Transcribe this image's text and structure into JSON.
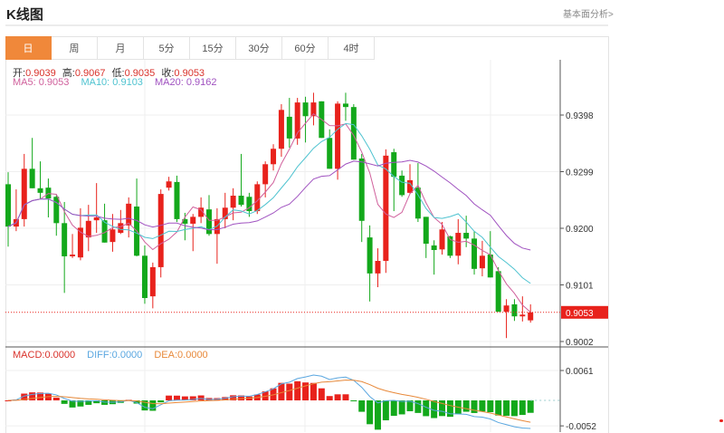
{
  "header": {
    "title": "K线图",
    "fundamental_link": "基本面分析>"
  },
  "tabs": [
    {
      "label": "日",
      "active": true
    },
    {
      "label": "周"
    },
    {
      "label": "月"
    },
    {
      "label": "5分"
    },
    {
      "label": "15分"
    },
    {
      "label": "30分"
    },
    {
      "label": "60分"
    },
    {
      "label": "4时"
    }
  ],
  "ohlc_info": {
    "open_label": "开:",
    "open": "0.9039",
    "high_label": "高:",
    "high": "0.9067",
    "low_label": "低:",
    "low": "0.9035",
    "close_label": "收:",
    "close": "0.9053"
  },
  "ma_info": {
    "ma5": "MA5: 0.9053",
    "ma10": "MA10: 0.9103",
    "ma20": "MA20: 0.9162"
  },
  "macd_info": {
    "macd": "MACD:0.0000",
    "diff": "DIFF:0.0000",
    "dea": "DEA:0.0000"
  },
  "colors": {
    "up": "#e8221c",
    "down": "#13a81b",
    "ma5": "#d0609c",
    "ma10": "#4fc3d0",
    "ma20": "#a052c0",
    "diff": "#5aa7e0",
    "dea": "#e8893a",
    "accent": "#f0883a"
  },
  "chart_data": {
    "type": "candlestick",
    "price_ticks": [
      "0.9398",
      "0.9299",
      "0.9200",
      "0.9101",
      "0.9002"
    ],
    "price_tick_values": [
      0.9398,
      0.9299,
      0.92,
      0.9101,
      0.9002
    ],
    "macd_ticks": [
      "0.0061",
      "-0.0052"
    ],
    "macd_tick_values": [
      0.0061,
      -0.0052
    ],
    "last_price": "0.9053",
    "last_price_value": 0.9053,
    "ohlc": [
      [
        0.9277,
        0.9298,
        0.9168,
        0.9203
      ],
      [
        0.9203,
        0.9268,
        0.9195,
        0.9216
      ],
      [
        0.9216,
        0.933,
        0.9203,
        0.9304
      ],
      [
        0.9304,
        0.9358,
        0.927,
        0.927
      ],
      [
        0.927,
        0.9317,
        0.9251,
        0.9262
      ],
      [
        0.9271,
        0.9287,
        0.9219,
        0.9252
      ],
      [
        0.9255,
        0.9258,
        0.9187,
        0.9209
      ],
      [
        0.9209,
        0.9246,
        0.9087,
        0.9151
      ],
      [
        0.9151,
        0.919,
        0.9148,
        0.9154
      ],
      [
        0.9149,
        0.9235,
        0.9144,
        0.9201
      ],
      [
        0.9184,
        0.9241,
        0.916,
        0.9213
      ],
      [
        0.9214,
        0.9279,
        0.9192,
        0.9219
      ],
      [
        0.9214,
        0.9243,
        0.9175,
        0.9175
      ],
      [
        0.9176,
        0.9225,
        0.9159,
        0.9198
      ],
      [
        0.9192,
        0.9232,
        0.919,
        0.9209
      ],
      [
        0.9205,
        0.9254,
        0.9184,
        0.9243
      ],
      [
        0.9238,
        0.9287,
        0.9151,
        0.9152
      ],
      [
        0.9152,
        0.917,
        0.9068,
        0.9078
      ],
      [
        0.9081,
        0.914,
        0.906,
        0.9132
      ],
      [
        0.9132,
        0.9268,
        0.9114,
        0.926
      ],
      [
        0.9271,
        0.929,
        0.9266,
        0.9282
      ],
      [
        0.9281,
        0.9292,
        0.9211,
        0.9216
      ],
      [
        0.9216,
        0.9227,
        0.9179,
        0.9208
      ],
      [
        0.9208,
        0.9225,
        0.916,
        0.922
      ],
      [
        0.922,
        0.9254,
        0.9209,
        0.9236
      ],
      [
        0.9233,
        0.9258,
        0.9187,
        0.919
      ],
      [
        0.919,
        0.9235,
        0.9138,
        0.9216
      ],
      [
        0.9216,
        0.9262,
        0.92,
        0.9236
      ],
      [
        0.9236,
        0.927,
        0.9214,
        0.9257
      ],
      [
        0.9257,
        0.933,
        0.9238,
        0.9241
      ],
      [
        0.9255,
        0.9262,
        0.922,
        0.923
      ],
      [
        0.923,
        0.9282,
        0.9225,
        0.9277
      ],
      [
        0.9277,
        0.9317,
        0.9254,
        0.9312
      ],
      [
        0.9312,
        0.9347,
        0.9301,
        0.9339
      ],
      [
        0.9339,
        0.9417,
        0.9325,
        0.9407
      ],
      [
        0.9395,
        0.9428,
        0.9341,
        0.9357
      ],
      [
        0.9357,
        0.9428,
        0.9346,
        0.942
      ],
      [
        0.942,
        0.943,
        0.935,
        0.9396
      ],
      [
        0.9396,
        0.9437,
        0.938,
        0.942
      ],
      [
        0.9422,
        0.9422,
        0.9358,
        0.9358
      ],
      [
        0.9358,
        0.9373,
        0.9304,
        0.9304
      ],
      [
        0.9304,
        0.9422,
        0.9285,
        0.9418
      ],
      [
        0.9418,
        0.9437,
        0.9388,
        0.9412
      ],
      [
        0.9412,
        0.9417,
        0.932,
        0.932
      ],
      [
        0.9322,
        0.933,
        0.9176,
        0.9213
      ],
      [
        0.9184,
        0.9205,
        0.9072,
        0.9121
      ],
      [
        0.9121,
        0.9165,
        0.9097,
        0.9143
      ],
      [
        0.9143,
        0.9338,
        0.9122,
        0.9327
      ],
      [
        0.9333,
        0.9339,
        0.923,
        0.929
      ],
      [
        0.9292,
        0.9301,
        0.9255,
        0.9258
      ],
      [
        0.9262,
        0.9312,
        0.926,
        0.9284
      ],
      [
        0.9271,
        0.9314,
        0.9211,
        0.9217
      ],
      [
        0.922,
        0.922,
        0.9148,
        0.9173
      ],
      [
        0.917,
        0.9179,
        0.9119,
        0.9162
      ],
      [
        0.9163,
        0.9211,
        0.9154,
        0.9198
      ],
      [
        0.9186,
        0.9187,
        0.9148,
        0.9152
      ],
      [
        0.9152,
        0.9216,
        0.9137,
        0.9192
      ],
      [
        0.9192,
        0.9222,
        0.9167,
        0.9182
      ],
      [
        0.9182,
        0.9195,
        0.9119,
        0.9129
      ],
      [
        0.913,
        0.9178,
        0.9116,
        0.9152
      ],
      [
        0.9154,
        0.9195,
        0.9114,
        0.9114
      ],
      [
        0.9125,
        0.9132,
        0.9054,
        0.9054
      ],
      [
        0.9054,
        0.9076,
        0.9008,
        0.9065
      ],
      [
        0.9067,
        0.9076,
        0.9038,
        0.9046
      ],
      [
        0.9046,
        0.9081,
        0.9037,
        0.9049
      ],
      [
        0.9039,
        0.9067,
        0.9035,
        0.9053
      ]
    ],
    "moving_averages": [
      5,
      10,
      20
    ]
  }
}
